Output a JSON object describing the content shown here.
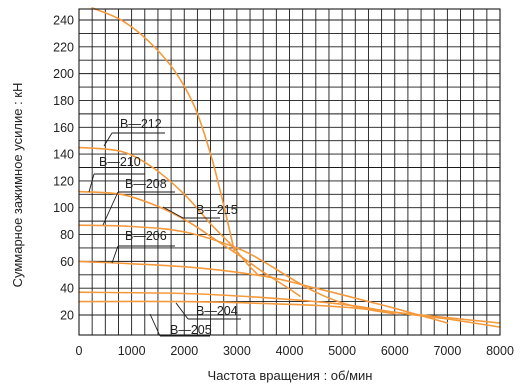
{
  "chart_data": {
    "type": "line",
    "xlabel": "Частота вращения : об/мин",
    "ylabel": "Суммарное зажимное усилие : кН",
    "xlim": [
      0,
      8000
    ],
    "ylim": [
      10,
      250
    ],
    "xticks": [
      0,
      1000,
      2000,
      3000,
      4000,
      5000,
      6000,
      7000,
      8000
    ],
    "yticks": [
      20,
      40,
      60,
      80,
      100,
      120,
      140,
      160,
      180,
      200,
      220,
      240
    ],
    "grid": true,
    "line_color": "#f59a3c",
    "series": [
      {
        "name": "B—215",
        "points": [
          [
            250,
            249
          ],
          [
            800,
            240
          ],
          [
            1300,
            225
          ],
          [
            1800,
            203
          ],
          [
            2200,
            175
          ],
          [
            2500,
            140
          ],
          [
            2700,
            110
          ],
          [
            2850,
            85
          ],
          [
            2950,
            68
          ]
        ]
      },
      {
        "name": "B—212",
        "points": [
          [
            0,
            145
          ],
          [
            800,
            142
          ],
          [
            1400,
            130
          ],
          [
            2000,
            110
          ],
          [
            2500,
            88
          ],
          [
            2900,
            72
          ],
          [
            3200,
            58
          ],
          [
            3400,
            50
          ]
        ]
      },
      {
        "name": "B—210",
        "points": [
          [
            0,
            112
          ],
          [
            800,
            110
          ],
          [
            1500,
            101
          ],
          [
            2100,
            89
          ],
          [
            2600,
            76
          ],
          [
            3100,
            63
          ],
          [
            3500,
            52
          ],
          [
            3900,
            42
          ],
          [
            4200,
            34
          ]
        ]
      },
      {
        "name": "B—208",
        "points": [
          [
            0,
            87
          ],
          [
            1000,
            86
          ],
          [
            2000,
            82
          ],
          [
            3000,
            70
          ],
          [
            3500,
            60
          ],
          [
            4000,
            48
          ],
          [
            4500,
            37
          ],
          [
            5000,
            29
          ],
          [
            5500,
            24
          ],
          [
            6000,
            21
          ]
        ]
      },
      {
        "name": "B—206",
        "points": [
          [
            0,
            60
          ],
          [
            2000,
            56
          ],
          [
            3500,
            49
          ],
          [
            4500,
            40
          ],
          [
            5500,
            30
          ],
          [
            6000,
            25
          ],
          [
            7000,
            14
          ]
        ]
      },
      {
        "name": "B—204",
        "points": [
          [
            0,
            37
          ],
          [
            2000,
            36
          ],
          [
            3500,
            33
          ],
          [
            5000,
            28
          ],
          [
            6000,
            22
          ],
          [
            7000,
            17
          ],
          [
            8000,
            11
          ]
        ]
      },
      {
        "name": "B—205",
        "points": [
          [
            0,
            30
          ],
          [
            2000,
            30
          ],
          [
            4000,
            28
          ],
          [
            5000,
            26
          ],
          [
            6000,
            22
          ],
          [
            7000,
            18
          ],
          [
            8000,
            14
          ]
        ]
      }
    ],
    "labels": [
      "B—215",
      "B—212",
      "B—210",
      "B—208",
      "B—206",
      "B—204",
      "B—205"
    ]
  }
}
